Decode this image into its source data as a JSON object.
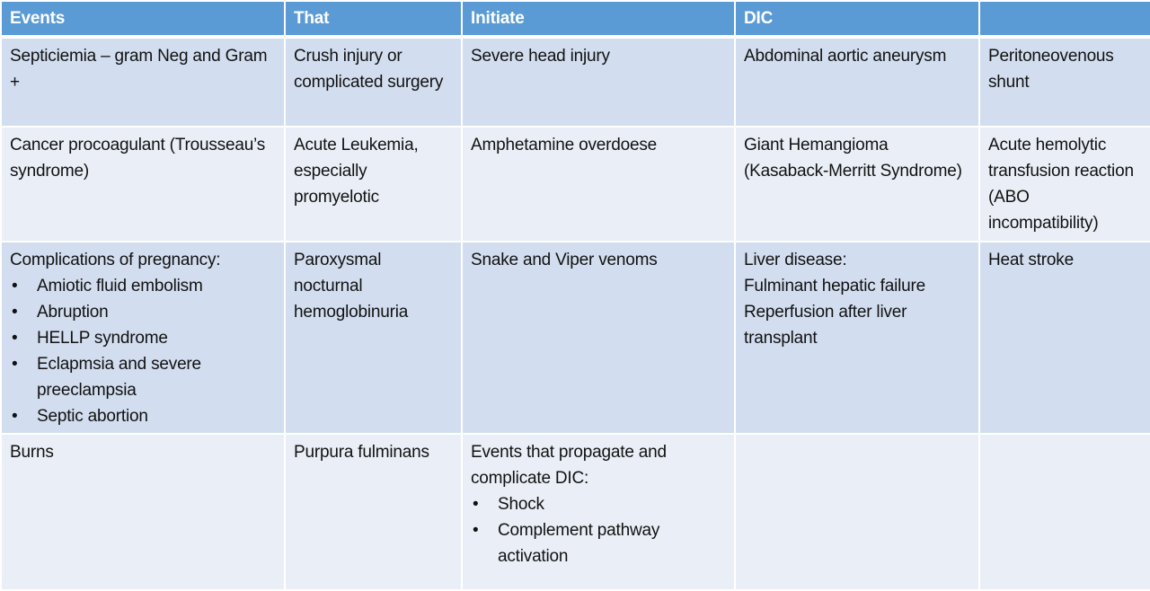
{
  "headers": [
    "Events",
    "That",
    "Initiate",
    "DIC",
    ""
  ],
  "rows": [
    [
      {
        "text": [
          "Septiciemia – gram Neg and Gram +"
        ],
        "bullets": []
      },
      {
        "text": [
          "Crush injury or complicated surgery"
        ],
        "bullets": []
      },
      {
        "text": [
          "Severe head injury"
        ],
        "bullets": []
      },
      {
        "text": [
          "Abdominal aortic aneurysm"
        ],
        "bullets": []
      },
      {
        "text": [
          "Peritoneovenous shunt"
        ],
        "bullets": []
      }
    ],
    [
      {
        "text": [
          "Cancer procoagulant (Trousseau’s syndrome)"
        ],
        "bullets": []
      },
      {
        "text": [
          "Acute Leukemia, especially promyelotic"
        ],
        "bullets": []
      },
      {
        "text": [
          "Amphetamine overdoese"
        ],
        "bullets": []
      },
      {
        "text": [
          "Giant Hemangioma (Kasaback-Merritt Syndrome)"
        ],
        "bullets": []
      },
      {
        "text": [
          "Acute hemolytic transfusion reaction (ABO incompatibility)"
        ],
        "bullets": []
      }
    ],
    [
      {
        "text": [
          "Complications of pregnancy:"
        ],
        "bullets": [
          "Amiotic fluid embolism",
          "Abruption",
          "HELLP syndrome",
          "Eclapmsia and severe preeclampsia",
          "Septic abortion"
        ]
      },
      {
        "text": [
          "Paroxysmal nocturnal hemoglobinuria"
        ],
        "bullets": []
      },
      {
        "text": [
          "Snake and Viper venoms"
        ],
        "bullets": []
      },
      {
        "text": [
          "Liver disease:",
          "Fulminant hepatic failure",
          "Reperfusion after liver transplant"
        ],
        "bullets": []
      },
      {
        "text": [
          "Heat stroke"
        ],
        "bullets": []
      }
    ],
    [
      {
        "text": [
          "Burns"
        ],
        "bullets": []
      },
      {
        "text": [
          "Purpura fulminans"
        ],
        "bullets": []
      },
      {
        "text": [
          "Events that propagate and complicate DIC:"
        ],
        "bullets": [
          "Shock",
          "Complement pathway activation"
        ]
      },
      {
        "text": [],
        "bullets": []
      },
      {
        "text": [],
        "bullets": []
      }
    ]
  ],
  "colors": {
    "header": "#5B9BD5",
    "row_odd": "#D2DEEF",
    "row_even": "#EAEFF7"
  }
}
